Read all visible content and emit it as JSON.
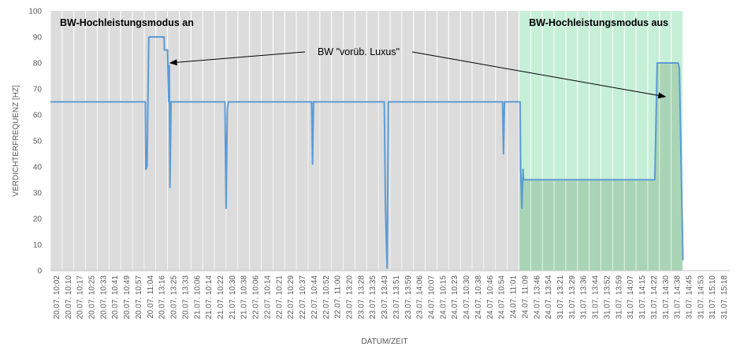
{
  "chart_data": {
    "type": "area",
    "title": "",
    "xlabel": "DATUM/ZEIT",
    "ylabel": "VERDICHTERFREQUENZ [HZ]",
    "ylim": [
      0,
      100
    ],
    "yticks": [
      0,
      10,
      20,
      30,
      40,
      50,
      60,
      70,
      80,
      90,
      100
    ],
    "grid": "vertical",
    "legend": "none",
    "categories": [
      "20.07. 10:02",
      "20.07. 10:10",
      "20.07. 10:17",
      "20.07. 10:25",
      "20.07. 10:33",
      "20.07. 10:41",
      "20.07. 10:49",
      "20.07. 10:57",
      "20.07. 11:04",
      "20.07. 13:16",
      "20.07. 13:25",
      "20.07. 13:33",
      "21.07. 10:06",
      "21.07. 10:14",
      "21.07. 10:22",
      "21.07. 10:30",
      "21.07. 10:38",
      "22.07. 10:06",
      "22.07. 10:14",
      "22.07. 10:21",
      "22.07. 10:29",
      "22.07. 10:37",
      "22.07. 10:44",
      "22.07. 10:52",
      "22.07. 11:00",
      "23.07. 13:20",
      "23.07. 13:28",
      "23.07. 13:35",
      "23.07. 13:43",
      "23.07. 13:51",
      "23.07. 13:59",
      "23.07. 14:06",
      "24.07. 10:07",
      "24.07. 10:15",
      "24.07. 10:23",
      "24.07. 10:30",
      "24.07. 10:38",
      "24.07. 10:46",
      "24.07. 10:54",
      "24.07. 11:01",
      "24.07. 11:09",
      "24.07. 13:46",
      "24.07. 13:54",
      "31.07. 13:21",
      "31.07. 13:29",
      "31.07. 13:36",
      "31.07. 13:44",
      "31.07. 13:52",
      "31.07. 13:59",
      "31.07. 14:07",
      "31.07. 14:15",
      "31.07. 14:22",
      "31.07. 14:30",
      "31.07. 14:38",
      "31.07. 14:45",
      "31.07. 14:53",
      "31.07. 15:10",
      "31.07. 15:18"
    ],
    "series": [
      {
        "color": "#5B9BD5",
        "fill": "#DCDCDC",
        "fill_highlight": "#A9D5B6",
        "points": [
          [
            0,
            65
          ],
          [
            8.1,
            65
          ],
          [
            8.15,
            39
          ],
          [
            8.25,
            40
          ],
          [
            8.4,
            90
          ],
          [
            9.7,
            90
          ],
          [
            9.72,
            85
          ],
          [
            10.0,
            85
          ],
          [
            10.1,
            65
          ],
          [
            10.15,
            79
          ],
          [
            10.2,
            32
          ],
          [
            10.3,
            65
          ],
          [
            14.8,
            65
          ],
          [
            14.9,
            65
          ],
          [
            15.0,
            24
          ],
          [
            15.1,
            62
          ],
          [
            15.2,
            65
          ],
          [
            22.3,
            65
          ],
          [
            22.38,
            41
          ],
          [
            22.46,
            65
          ],
          [
            28.5,
            65
          ],
          [
            28.6,
            25
          ],
          [
            28.7,
            8
          ],
          [
            28.75,
            1
          ],
          [
            28.85,
            65
          ],
          [
            38.6,
            65
          ],
          [
            38.68,
            45
          ],
          [
            38.76,
            65
          ],
          [
            40.1,
            65
          ],
          [
            40.15,
            39
          ],
          [
            40.25,
            24
          ],
          [
            40.35,
            39
          ],
          [
            40.4,
            35
          ],
          [
            51.6,
            35
          ],
          [
            51.8,
            80
          ],
          [
            53.6,
            80
          ],
          [
            53.7,
            78
          ],
          [
            54.0,
            4
          ]
        ]
      }
    ],
    "regions": [
      {
        "label": "BW-Hochleistungsmodus an",
        "from": 0,
        "to": 40.05,
        "color": "#DCDCDC"
      },
      {
        "label": "BW-Hochleistungsmodus aus",
        "from": 40.05,
        "to": 54.0,
        "color": "#C6EFD8"
      }
    ],
    "annotations": [
      {
        "text": "BW \"vorüb. Luxus\"",
        "targets": [
          [
            9.8,
            80
          ],
          [
            52.5,
            67
          ]
        ]
      }
    ]
  }
}
